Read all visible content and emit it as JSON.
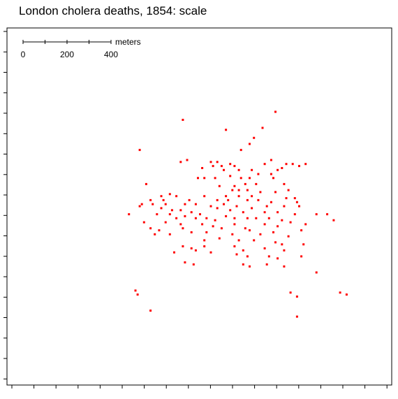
{
  "chart_data": {
    "type": "scatter",
    "title": "London cholera deaths, 1854: scale",
    "marker_color": "#ff0000",
    "grid": false,
    "xlim": [
      0,
      17.5
    ],
    "ylim": [
      0,
      17.5
    ],
    "scale_bar": {
      "unit_label": "meters",
      "tick_labels": [
        "0",
        "200",
        "400"
      ],
      "max_meters": 400
    },
    "points": [
      [
        12.3,
        13.5
      ],
      [
        8.0,
        13.1
      ],
      [
        10.0,
        12.6
      ],
      [
        11.7,
        12.7
      ],
      [
        11.3,
        12.2
      ],
      [
        11.1,
        11.9
      ],
      [
        10.7,
        11.6
      ],
      [
        6.0,
        11.6
      ],
      [
        8.2,
        11.1
      ],
      [
        7.9,
        11.0
      ],
      [
        9.3,
        11.0
      ],
      [
        9.6,
        11.0
      ],
      [
        9.4,
        10.8
      ],
      [
        9.8,
        10.8
      ],
      [
        10.2,
        10.9
      ],
      [
        10.4,
        10.8
      ],
      [
        12.1,
        11.1
      ],
      [
        11.8,
        10.9
      ],
      [
        12.8,
        10.9
      ],
      [
        13.1,
        10.9
      ],
      [
        13.4,
        10.8
      ],
      [
        13.7,
        10.9
      ],
      [
        12.6,
        10.7
      ],
      [
        12.4,
        10.6
      ],
      [
        12.1,
        10.4
      ],
      [
        8.9,
        10.7
      ],
      [
        9.9,
        10.6
      ],
      [
        10.6,
        10.6
      ],
      [
        11.2,
        10.6
      ],
      [
        11.5,
        10.4
      ],
      [
        8.7,
        10.2
      ],
      [
        9.0,
        10.2
      ],
      [
        9.5,
        10.2
      ],
      [
        10.2,
        10.3
      ],
      [
        10.7,
        10.2
      ],
      [
        11.1,
        10.2
      ],
      [
        12.2,
        10.2
      ],
      [
        6.3,
        9.9
      ],
      [
        9.7,
        9.8
      ],
      [
        10.4,
        9.8
      ],
      [
        10.9,
        9.9
      ],
      [
        11.4,
        9.9
      ],
      [
        12.7,
        9.9
      ],
      [
        12.9,
        9.6
      ],
      [
        11.0,
        9.6
      ],
      [
        10.6,
        9.6
      ],
      [
        10.3,
        9.6
      ],
      [
        11.6,
        9.5
      ],
      [
        12.3,
        9.5
      ],
      [
        7.0,
        9.3
      ],
      [
        7.4,
        9.4
      ],
      [
        7.7,
        9.3
      ],
      [
        9.0,
        9.3
      ],
      [
        10.0,
        9.3
      ],
      [
        10.6,
        9.3
      ],
      [
        11.2,
        9.3
      ],
      [
        12.8,
        9.2
      ],
      [
        13.2,
        9.2
      ],
      [
        6.5,
        9.1
      ],
      [
        7.1,
        9.1
      ],
      [
        8.3,
        9.1
      ],
      [
        9.6,
        9.1
      ],
      [
        10.1,
        9.1
      ],
      [
        11.0,
        9.1
      ],
      [
        11.5,
        9.1
      ],
      [
        12.1,
        9.0
      ],
      [
        13.3,
        9.0
      ],
      [
        6.1,
        8.9
      ],
      [
        6.6,
        8.9
      ],
      [
        7.2,
        8.9
      ],
      [
        8.1,
        8.9
      ],
      [
        8.6,
        8.9
      ],
      [
        9.3,
        8.8
      ],
      [
        9.9,
        8.9
      ],
      [
        10.5,
        8.8
      ],
      [
        11.9,
        8.8
      ],
      [
        12.7,
        8.8
      ],
      [
        13.4,
        8.8
      ],
      [
        6.0,
        8.8
      ],
      [
        7.0,
        8.7
      ],
      [
        7.5,
        8.6
      ],
      [
        7.9,
        8.6
      ],
      [
        8.4,
        8.5
      ],
      [
        8.8,
        8.4
      ],
      [
        9.6,
        8.7
      ],
      [
        10.2,
        8.6
      ],
      [
        10.8,
        8.5
      ],
      [
        11.2,
        8.7
      ],
      [
        11.8,
        8.5
      ],
      [
        12.4,
        8.5
      ],
      [
        13.2,
        8.4
      ],
      [
        5.5,
        8.4
      ],
      [
        6.8,
        8.4
      ],
      [
        7.4,
        8.4
      ],
      [
        7.7,
        8.2
      ],
      [
        8.1,
        8.3
      ],
      [
        8.6,
        8.2
      ],
      [
        9.1,
        8.2
      ],
      [
        9.5,
        8.1
      ],
      [
        10.0,
        8.3
      ],
      [
        10.4,
        8.2
      ],
      [
        11.0,
        8.2
      ],
      [
        11.4,
        8.2
      ],
      [
        12.0,
        8.2
      ],
      [
        12.6,
        8.1
      ],
      [
        13.0,
        8.0
      ],
      [
        14.2,
        8.4
      ],
      [
        14.7,
        8.4
      ],
      [
        15.0,
        8.1
      ],
      [
        6.2,
        8.0
      ],
      [
        7.2,
        8.0
      ],
      [
        7.9,
        7.9
      ],
      [
        8.9,
        7.9
      ],
      [
        9.4,
        7.8
      ],
      [
        10.4,
        7.9
      ],
      [
        11.8,
        7.9
      ],
      [
        12.4,
        7.8
      ],
      [
        13.7,
        7.9
      ],
      [
        6.5,
        7.7
      ],
      [
        6.9,
        7.6
      ],
      [
        8.0,
        7.7
      ],
      [
        9.8,
        7.7
      ],
      [
        10.9,
        7.7
      ],
      [
        11.1,
        7.6
      ],
      [
        12.2,
        7.5
      ],
      [
        13.5,
        7.6
      ],
      [
        6.7,
        7.4
      ],
      [
        7.4,
        7.4
      ],
      [
        8.4,
        7.5
      ],
      [
        9.1,
        7.5
      ],
      [
        10.3,
        7.4
      ],
      [
        11.6,
        7.4
      ],
      [
        12.9,
        7.3
      ],
      [
        9.0,
        7.1
      ],
      [
        9.7,
        7.2
      ],
      [
        10.6,
        7.1
      ],
      [
        11.3,
        7.1
      ],
      [
        12.3,
        7.0
      ],
      [
        12.6,
        6.9
      ],
      [
        13.6,
        6.9
      ],
      [
        8.0,
        6.8
      ],
      [
        8.4,
        6.7
      ],
      [
        9.0,
        6.8
      ],
      [
        10.4,
        6.8
      ],
      [
        10.8,
        6.6
      ],
      [
        11.8,
        6.7
      ],
      [
        12.7,
        6.6
      ],
      [
        7.6,
        6.5
      ],
      [
        8.6,
        6.6
      ],
      [
        9.3,
        6.5
      ],
      [
        10.5,
        6.4
      ],
      [
        11.0,
        6.3
      ],
      [
        12.0,
        6.3
      ],
      [
        12.4,
        6.2
      ],
      [
        13.5,
        6.3
      ],
      [
        8.1,
        6.0
      ],
      [
        8.5,
        5.9
      ],
      [
        10.8,
        5.9
      ],
      [
        11.1,
        5.8
      ],
      [
        11.9,
        5.9
      ],
      [
        12.7,
        5.8
      ],
      [
        14.2,
        5.5
      ],
      [
        5.8,
        4.6
      ],
      [
        5.9,
        4.4
      ],
      [
        13.0,
        4.5
      ],
      [
        13.3,
        4.3
      ],
      [
        15.3,
        4.5
      ],
      [
        15.6,
        4.4
      ],
      [
        6.5,
        3.6
      ],
      [
        13.3,
        3.3
      ]
    ]
  }
}
